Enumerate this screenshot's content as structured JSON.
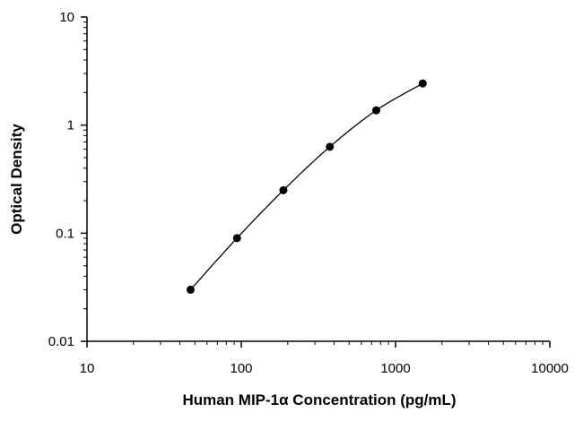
{
  "chart_data": {
    "type": "scatter",
    "title": "",
    "xlabel": "Human MIP-1α Concentration (pg/mL)",
    "ylabel": "Optical Density",
    "xscale": "log",
    "yscale": "log",
    "xlim": [
      10,
      10000
    ],
    "ylim": [
      0.01,
      10
    ],
    "x_ticks": [
      10,
      100,
      1000,
      10000
    ],
    "x_tick_labels": [
      "10",
      "100",
      "1000",
      "10000"
    ],
    "y_ticks": [
      0.01,
      0.1,
      1,
      10
    ],
    "y_tick_labels": [
      "0.01",
      "0.1",
      "1",
      "10"
    ],
    "grid": false,
    "legend": "none",
    "fit_curve": true,
    "series": [
      {
        "x": [
          46.9,
          93.8,
          187.5,
          375,
          750,
          1500
        ],
        "y": [
          0.03,
          0.09,
          0.25,
          0.63,
          1.37,
          2.43
        ]
      }
    ],
    "colors": {
      "marker": "#000000",
      "curve": "#000000",
      "axis": "#000000"
    }
  }
}
